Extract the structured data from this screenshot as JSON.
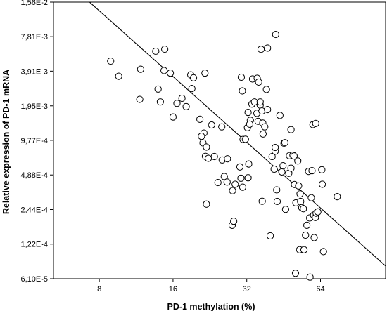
{
  "chart_data": {
    "type": "scatter",
    "title": "",
    "xlabel": "PD-1 methylation (%)",
    "ylabel": "Relative expression of PD-1 mRNA",
    "x_scale": "log2",
    "y_scale": "log2",
    "xlim": [
      5.2,
      118
    ],
    "ylim": [
      6.1e-05,
      0.0156
    ],
    "x_ticks": [
      8,
      16,
      32,
      64
    ],
    "x_tick_labels": [
      "8",
      "16",
      "32",
      "64"
    ],
    "y_ticks": [
      6.1e-05,
      0.000122,
      0.000244,
      0.000488,
      0.000977,
      0.00195,
      0.00391,
      0.00781,
      0.0156
    ],
    "y_tick_labels": [
      "6,10E-5",
      "1,22E-4",
      "2,44E-4",
      "4,88E-4",
      "9,77E-4",
      "1,95E-3",
      "3,91E-3",
      "7,81E-3",
      "1,56E-2"
    ],
    "grid": false,
    "legend": "none",
    "fit_line": {
      "type": "linear-log-log",
      "x": [
        7.3,
        118
      ],
      "y": [
        0.0156,
        7.87e-05
      ]
    },
    "points": [
      {
        "x": 8.9,
        "y": 0.00478
      },
      {
        "x": 9.6,
        "y": 0.00353
      },
      {
        "x": 11.8,
        "y": 0.00406
      },
      {
        "x": 11.7,
        "y": 0.00222
      },
      {
        "x": 13.6,
        "y": 0.00583
      },
      {
        "x": 13.9,
        "y": 0.00273
      },
      {
        "x": 14.8,
        "y": 0.00607
      },
      {
        "x": 14.7,
        "y": 0.00396
      },
      {
        "x": 14.2,
        "y": 0.00211
      },
      {
        "x": 15.6,
        "y": 0.00376
      },
      {
        "x": 16.0,
        "y": 0.00156
      },
      {
        "x": 16.6,
        "y": 0.00205
      },
      {
        "x": 17.4,
        "y": 0.00227
      },
      {
        "x": 18.1,
        "y": 0.00192
      },
      {
        "x": 18.9,
        "y": 0.00363
      },
      {
        "x": 19.4,
        "y": 0.00342
      },
      {
        "x": 19.1,
        "y": 0.00276
      },
      {
        "x": 21.6,
        "y": 0.00376
      },
      {
        "x": 20.6,
        "y": 0.00149
      },
      {
        "x": 21.4,
        "y": 0.00113
      },
      {
        "x": 20.9,
        "y": 0.00106
      },
      {
        "x": 21.2,
        "y": 0.000928
      },
      {
        "x": 21.9,
        "y": 0.000853
      },
      {
        "x": 23.0,
        "y": 0.00133
      },
      {
        "x": 21.7,
        "y": 0.000709
      },
      {
        "x": 22.3,
        "y": 0.000681
      },
      {
        "x": 21.9,
        "y": 0.000272
      },
      {
        "x": 25.3,
        "y": 0.00128
      },
      {
        "x": 23.6,
        "y": 0.000706
      },
      {
        "x": 25.4,
        "y": 0.000659
      },
      {
        "x": 25.9,
        "y": 0.000473
      },
      {
        "x": 24.4,
        "y": 0.000419
      },
      {
        "x": 26.7,
        "y": 0.000675
      },
      {
        "x": 26.6,
        "y": 0.000423
      },
      {
        "x": 28.7,
        "y": 0.000405
      },
      {
        "x": 28.0,
        "y": 0.000356
      },
      {
        "x": 27.9,
        "y": 0.000178
      },
      {
        "x": 28.3,
        "y": 0.000193
      },
      {
        "x": 30.4,
        "y": 0.00346
      },
      {
        "x": 30.7,
        "y": 0.00263
      },
      {
        "x": 30.0,
        "y": 0.000573
      },
      {
        "x": 30.3,
        "y": 0.000457
      },
      {
        "x": 30.8,
        "y": 0.000382
      },
      {
        "x": 30.9,
        "y": 0.000995
      },
      {
        "x": 31.6,
        "y": 0.000998
      },
      {
        "x": 32.2,
        "y": 0.00126
      },
      {
        "x": 32.4,
        "y": 0.00171
      },
      {
        "x": 33.1,
        "y": 0.00146
      },
      {
        "x": 32.9,
        "y": 0.00135
      },
      {
        "x": 32.6,
        "y": 0.000608
      },
      {
        "x": 32.4,
        "y": 0.000461
      },
      {
        "x": 33.6,
        "y": 0.00202
      },
      {
        "x": 34.4,
        "y": 0.00211
      },
      {
        "x": 33.8,
        "y": 0.00334
      },
      {
        "x": 35.3,
        "y": 0.00339
      },
      {
        "x": 35.8,
        "y": 0.00314
      },
      {
        "x": 35.2,
        "y": 0.00168
      },
      {
        "x": 36.3,
        "y": 0.00198
      },
      {
        "x": 36.3,
        "y": 0.00211
      },
      {
        "x": 35.6,
        "y": 0.00143
      },
      {
        "x": 36.9,
        "y": 0.00176
      },
      {
        "x": 37.2,
        "y": 0.00138
      },
      {
        "x": 37.9,
        "y": 0.00128
      },
      {
        "x": 38.5,
        "y": 0.00271
      },
      {
        "x": 38.9,
        "y": 0.00181
      },
      {
        "x": 36.6,
        "y": 0.00606
      },
      {
        "x": 38.9,
        "y": 0.00621
      },
      {
        "x": 37.3,
        "y": 0.00111
      },
      {
        "x": 37.0,
        "y": 0.000288
      },
      {
        "x": 39.9,
        "y": 0.000144
      },
      {
        "x": 40.6,
        "y": 0.000705
      },
      {
        "x": 41.8,
        "y": 0.000785
      },
      {
        "x": 41.8,
        "y": 0.000847
      },
      {
        "x": 41.4,
        "y": 0.000548
      },
      {
        "x": 42.0,
        "y": 0.00816
      },
      {
        "x": 42.4,
        "y": 0.000362
      },
      {
        "x": 42.6,
        "y": 0.000287
      },
      {
        "x": 43.7,
        "y": 0.00161
      },
      {
        "x": 44.5,
        "y": 0.000519
      },
      {
        "x": 45.0,
        "y": 0.000587
      },
      {
        "x": 45.4,
        "y": 0.000923
      },
      {
        "x": 45.8,
        "y": 0.000933
      },
      {
        "x": 46.1,
        "y": 0.000245
      },
      {
        "x": 47.5,
        "y": 0.000505
      },
      {
        "x": 47.8,
        "y": 0.000718
      },
      {
        "x": 48.5,
        "y": 0.00121
      },
      {
        "x": 48.5,
        "y": 0.000559
      },
      {
        "x": 49.4,
        "y": 0.000726
      },
      {
        "x": 49.9,
        "y": 0.000714
      },
      {
        "x": 50.1,
        "y": 0.000403
      },
      {
        "x": 50.8,
        "y": 0.000279
      },
      {
        "x": 50.6,
        "y": 6.8e-05
      },
      {
        "x": 51.7,
        "y": 0.000646
      },
      {
        "x": 52.1,
        "y": 0.000392
      },
      {
        "x": 52.8,
        "y": 0.000334
      },
      {
        "x": 53.1,
        "y": 0.000287
      },
      {
        "x": 53.7,
        "y": 0.000253
      },
      {
        "x": 52.6,
        "y": 0.000109
      },
      {
        "x": 54.5,
        "y": 0.000248
      },
      {
        "x": 54.8,
        "y": 0.000109
      },
      {
        "x": 55.6,
        "y": 0.000146
      },
      {
        "x": 56.3,
        "y": 0.000178
      },
      {
        "x": 57.2,
        "y": 0.000524
      },
      {
        "x": 57.8,
        "y": 0.000206
      },
      {
        "x": 58.7,
        "y": 0.000309
      },
      {
        "x": 58.0,
        "y": 6.3e-05
      },
      {
        "x": 59.1,
        "y": 0.000532
      },
      {
        "x": 60.0,
        "y": 0.000218
      },
      {
        "x": 61.0,
        "y": 0.000208
      },
      {
        "x": 61.4,
        "y": 0.000227
      },
      {
        "x": 60.3,
        "y": 0.000139
      },
      {
        "x": 62.4,
        "y": 0.000233
      },
      {
        "x": 59.6,
        "y": 0.00134
      },
      {
        "x": 61.2,
        "y": 0.00137
      },
      {
        "x": 64.8,
        "y": 0.000541
      },
      {
        "x": 65.1,
        "y": 0.000405
      },
      {
        "x": 65.8,
        "y": 0.000105
      },
      {
        "x": 74.9,
        "y": 0.000316
      }
    ]
  }
}
